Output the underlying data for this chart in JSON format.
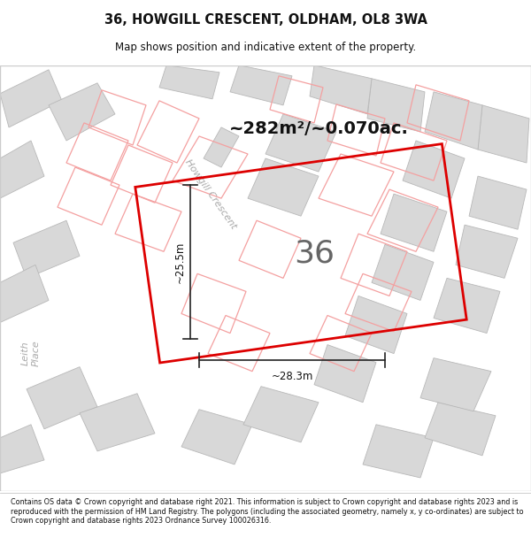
{
  "title": "36, HOWGILL CRESCENT, OLDHAM, OL8 3WA",
  "subtitle": "Map shows position and indicative extent of the property.",
  "footer": "Contains OS data © Crown copyright and database right 2021. This information is subject to Crown copyright and database rights 2023 and is reproduced with the permission of HM Land Registry. The polygons (including the associated geometry, namely x, y co-ordinates) are subject to Crown copyright and database rights 2023 Ordnance Survey 100026316.",
  "area_label": "~282m²/~0.070ac.",
  "plot_number": "36",
  "dim_width": "~28.3m",
  "dim_height": "~25.5m",
  "map_bg": "#f2f2f2",
  "building_color": "#d8d8d8",
  "building_edge": "#b8b8b8",
  "plot_outline_color": "#dd0000",
  "neighbor_color": "#f4a0a0",
  "street_label1": "Howgill Crescent",
  "street_label2": "Leith\nPlace",
  "road_color": "#ffffff"
}
